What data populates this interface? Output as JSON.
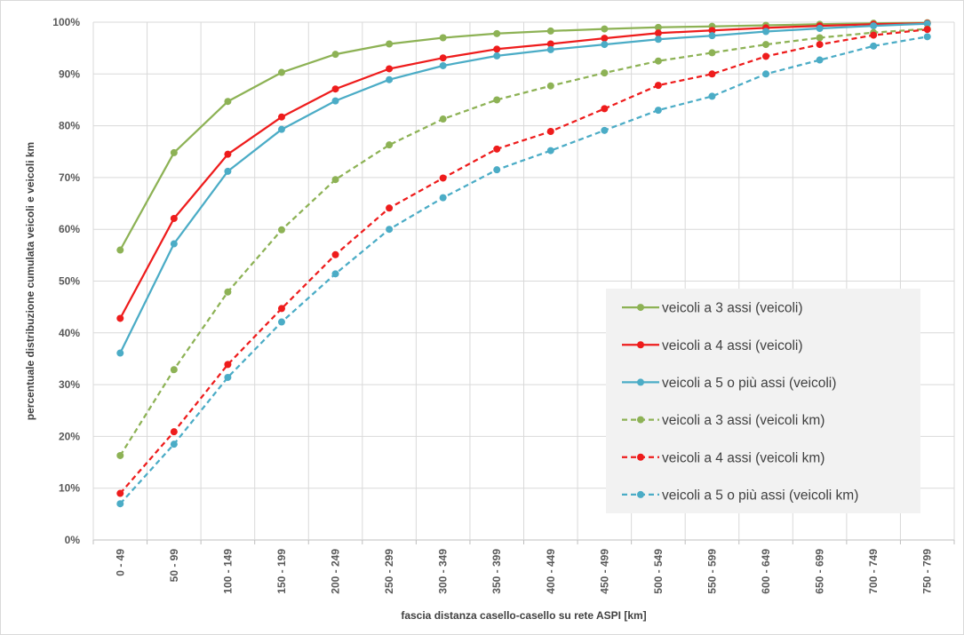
{
  "chart_data": {
    "type": "line",
    "title": "",
    "xlabel": "fascia distanza casello-casello su rete ASPI [km]",
    "ylabel": "percentuale distribuzione cumulata veicoli e veicoli km",
    "categories": [
      "0 - 49",
      "50 - 99",
      "100 - 149",
      "150 - 199",
      "200 - 249",
      "250 - 299",
      "300 - 349",
      "350 - 399",
      "400 - 449",
      "450 - 499",
      "500 - 549",
      "550 - 599",
      "600 - 649",
      "650 - 699",
      "700 - 749",
      "750 - 799"
    ],
    "ylim": [
      0,
      100
    ],
    "yticks": [
      "0%",
      "10%",
      "20%",
      "30%",
      "40%",
      "50%",
      "60%",
      "70%",
      "80%",
      "90%",
      "100%"
    ],
    "grid": true,
    "legend_position": "bottom-right inside plot",
    "series": [
      {
        "name": "veicoli a 3 assi (veicoli)",
        "color": "#8db255",
        "dashed": false,
        "values": [
          56,
          74.8,
          84.7,
          90.3,
          93.8,
          95.8,
          97.0,
          97.8,
          98.3,
          98.7,
          99.0,
          99.2,
          99.4,
          99.6,
          99.8,
          99.9
        ]
      },
      {
        "name": "veicoli a 4 assi (veicoli)",
        "color": "#ee1c1c",
        "dashed": false,
        "values": [
          42.8,
          62.1,
          74.5,
          81.7,
          87.1,
          91.0,
          93.1,
          94.8,
          95.8,
          96.9,
          97.9,
          98.4,
          98.9,
          99.3,
          99.6,
          99.8
        ]
      },
      {
        "name": "veicoli a 5 o più assi (veicoli)",
        "color": "#4bacc6",
        "dashed": false,
        "values": [
          36.1,
          57.2,
          71.2,
          79.3,
          84.8,
          88.9,
          91.6,
          93.5,
          94.7,
          95.7,
          96.7,
          97.4,
          98.2,
          98.8,
          99.3,
          99.7
        ]
      },
      {
        "name": "veicoli a 3 assi (veicoli km)",
        "color": "#8db255",
        "dashed": true,
        "values": [
          16.3,
          32.9,
          47.9,
          59.9,
          69.6,
          76.3,
          81.3,
          85.0,
          87.7,
          90.2,
          92.5,
          94.1,
          95.7,
          97.0,
          98.0,
          98.7
        ]
      },
      {
        "name": "veicoli a 4 assi (veicoli km)",
        "color": "#ee1c1c",
        "dashed": true,
        "values": [
          9.0,
          20.9,
          33.9,
          44.7,
          55.1,
          64.1,
          69.9,
          75.5,
          78.9,
          83.3,
          87.8,
          90.0,
          93.4,
          95.7,
          97.5,
          98.6
        ]
      },
      {
        "name": "veicoli a 5 o più assi (veicoli km)",
        "color": "#4bacc6",
        "dashed": true,
        "values": [
          7.0,
          18.5,
          31.4,
          42.1,
          51.4,
          60.0,
          66.1,
          71.5,
          75.2,
          79.1,
          83.0,
          85.7,
          90.0,
          92.7,
          95.4,
          97.2
        ]
      }
    ]
  }
}
